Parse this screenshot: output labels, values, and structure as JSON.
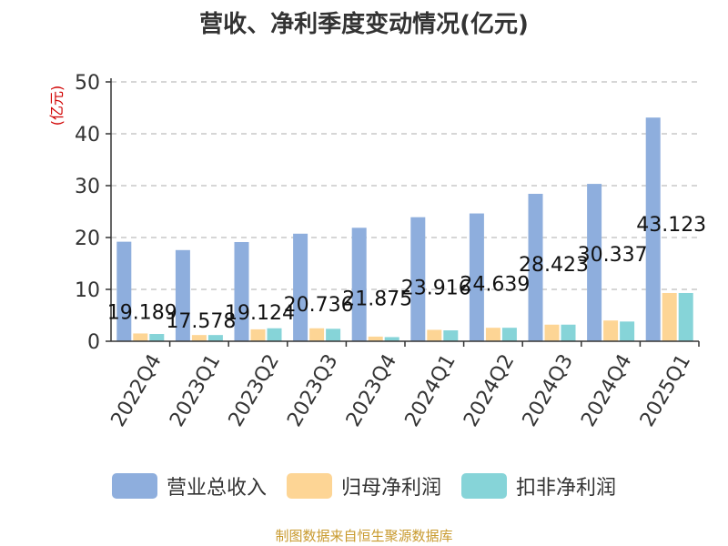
{
  "chart_data": {
    "type": "bar",
    "title": "营收、净利季度变动情况(亿元)",
    "ylabel": "(亿元)",
    "xlabel": "",
    "categories": [
      "2022Q4",
      "2023Q1",
      "2023Q2",
      "2023Q3",
      "2023Q4",
      "2024Q1",
      "2024Q2",
      "2024Q3",
      "2024Q4",
      "2025Q1"
    ],
    "series": [
      {
        "name": "营业总收入",
        "color": "#8eaedd",
        "values": [
          19.189,
          17.578,
          19.124,
          20.736,
          21.875,
          23.916,
          24.639,
          28.423,
          30.337,
          43.123
        ],
        "labels": [
          "19.189",
          "17.578",
          "19.124",
          "20.736",
          "21.875",
          "23.916",
          "24.639",
          "28.423",
          "30.337",
          "43.123"
        ]
      },
      {
        "name": "归母净利润",
        "color": "#fdd595",
        "values": [
          1.5,
          1.2,
          2.3,
          2.5,
          0.9,
          2.2,
          2.6,
          3.2,
          4.0,
          9.3
        ]
      },
      {
        "name": "扣非净利润",
        "color": "#86d4d8",
        "values": [
          1.4,
          1.2,
          2.5,
          2.4,
          0.8,
          2.1,
          2.6,
          3.2,
          3.8,
          9.3
        ]
      }
    ],
    "ylim": [
      0,
      50
    ],
    "yticks": [
      0,
      10,
      20,
      30,
      40,
      50
    ],
    "grid": true,
    "legend_position": "bottom"
  },
  "source_note": "制图数据来自恒生聚源数据库"
}
